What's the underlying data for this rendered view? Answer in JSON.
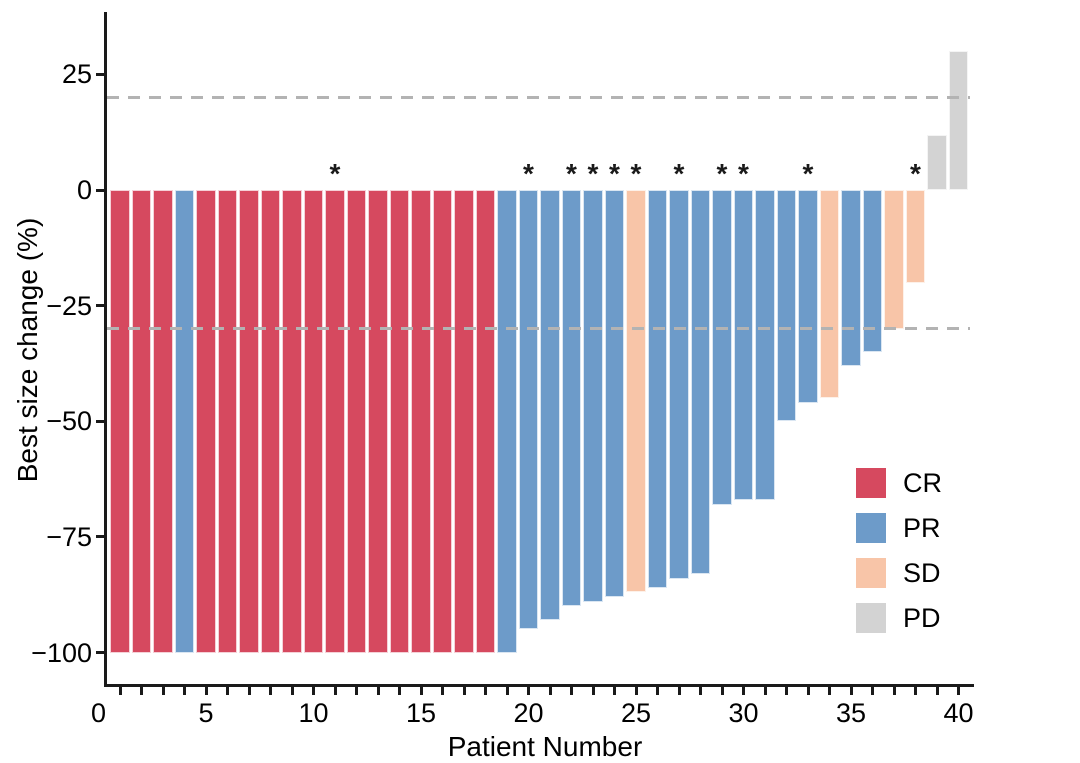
{
  "chart_data": {
    "type": "bar",
    "subtype": "waterfall-tumor-response",
    "title": "",
    "xlabel": "Patient Number",
    "ylabel": "Best size change (%)",
    "marker_symbol": "*",
    "xlim": [
      0,
      40.7
    ],
    "ylim": [
      -107,
      38
    ],
    "grid": false,
    "legend_position": "right-middle",
    "x_tick_labels": [
      {
        "value": 0,
        "label": "0"
      },
      {
        "value": 5,
        "label": "5"
      },
      {
        "value": 10,
        "label": "10"
      },
      {
        "value": 15,
        "label": "15"
      },
      {
        "value": 20,
        "label": "20"
      },
      {
        "value": 25,
        "label": "25"
      },
      {
        "value": 30,
        "label": "30"
      },
      {
        "value": 35,
        "label": "35"
      },
      {
        "value": 40,
        "label": "40"
      }
    ],
    "minor_x_ticks_every": 1,
    "y_tick_labels": [
      {
        "value": 25,
        "label": "25"
      },
      {
        "value": 0,
        "label": "0"
      },
      {
        "value": -25,
        "label": "−25"
      },
      {
        "value": -50,
        "label": "−50"
      },
      {
        "value": -75,
        "label": "−75"
      },
      {
        "value": -100,
        "label": "−100"
      }
    ],
    "reference_lines": [
      {
        "value": 20,
        "style": "dashed"
      },
      {
        "value": -30,
        "style": "dashed"
      }
    ],
    "colors": {
      "CR": "#D6495F",
      "PR": "#6D9BC9",
      "SD": "#F8C5A8",
      "PD": "#D3D3D3",
      "reference": "#B3B3B3",
      "axis": "#1A1A1A"
    },
    "legend": [
      {
        "label": "CR"
      },
      {
        "label": "PR"
      },
      {
        "label": "SD"
      },
      {
        "label": "PD"
      }
    ],
    "patients": [
      {
        "number": 1,
        "change_pct": -100,
        "response": "CR",
        "asterisk": false
      },
      {
        "number": 2,
        "change_pct": -100,
        "response": "CR",
        "asterisk": false
      },
      {
        "number": 3,
        "change_pct": -100,
        "response": "CR",
        "asterisk": false
      },
      {
        "number": 4,
        "change_pct": -100,
        "response": "PR",
        "asterisk": false
      },
      {
        "number": 5,
        "change_pct": -100,
        "response": "CR",
        "asterisk": false
      },
      {
        "number": 6,
        "change_pct": -100,
        "response": "CR",
        "asterisk": false
      },
      {
        "number": 7,
        "change_pct": -100,
        "response": "CR",
        "asterisk": false
      },
      {
        "number": 8,
        "change_pct": -100,
        "response": "CR",
        "asterisk": false
      },
      {
        "number": 9,
        "change_pct": -100,
        "response": "CR",
        "asterisk": false
      },
      {
        "number": 10,
        "change_pct": -100,
        "response": "CR",
        "asterisk": false
      },
      {
        "number": 11,
        "change_pct": -100,
        "response": "CR",
        "asterisk": true
      },
      {
        "number": 12,
        "change_pct": -100,
        "response": "CR",
        "asterisk": false
      },
      {
        "number": 13,
        "change_pct": -100,
        "response": "CR",
        "asterisk": false
      },
      {
        "number": 14,
        "change_pct": -100,
        "response": "CR",
        "asterisk": false
      },
      {
        "number": 15,
        "change_pct": -100,
        "response": "CR",
        "asterisk": false
      },
      {
        "number": 16,
        "change_pct": -100,
        "response": "CR",
        "asterisk": false
      },
      {
        "number": 17,
        "change_pct": -100,
        "response": "CR",
        "asterisk": false
      },
      {
        "number": 18,
        "change_pct": -100,
        "response": "CR",
        "asterisk": false
      },
      {
        "number": 19,
        "change_pct": -100,
        "response": "PR",
        "asterisk": false
      },
      {
        "number": 20,
        "change_pct": -95,
        "response": "PR",
        "asterisk": true
      },
      {
        "number": 21,
        "change_pct": -93,
        "response": "PR",
        "asterisk": false
      },
      {
        "number": 22,
        "change_pct": -90,
        "response": "PR",
        "asterisk": true
      },
      {
        "number": 23,
        "change_pct": -89,
        "response": "PR",
        "asterisk": true
      },
      {
        "number": 24,
        "change_pct": -88,
        "response": "PR",
        "asterisk": true
      },
      {
        "number": 25,
        "change_pct": -87,
        "response": "SD",
        "asterisk": true
      },
      {
        "number": 26,
        "change_pct": -86,
        "response": "PR",
        "asterisk": false
      },
      {
        "number": 27,
        "change_pct": -84,
        "response": "PR",
        "asterisk": true
      },
      {
        "number": 28,
        "change_pct": -83,
        "response": "PR",
        "asterisk": false
      },
      {
        "number": 29,
        "change_pct": -68,
        "response": "PR",
        "asterisk": true
      },
      {
        "number": 30,
        "change_pct": -67,
        "response": "PR",
        "asterisk": true
      },
      {
        "number": 31,
        "change_pct": -67,
        "response": "PR",
        "asterisk": false
      },
      {
        "number": 32,
        "change_pct": -50,
        "response": "PR",
        "asterisk": false
      },
      {
        "number": 33,
        "change_pct": -46,
        "response": "PR",
        "asterisk": true
      },
      {
        "number": 34,
        "change_pct": -45,
        "response": "SD",
        "asterisk": false
      },
      {
        "number": 35,
        "change_pct": -38,
        "response": "PR",
        "asterisk": false
      },
      {
        "number": 36,
        "change_pct": -35,
        "response": "PR",
        "asterisk": false
      },
      {
        "number": 37,
        "change_pct": -30,
        "response": "SD",
        "asterisk": false
      },
      {
        "number": 38,
        "change_pct": -20,
        "response": "SD",
        "asterisk": true
      },
      {
        "number": 39,
        "change_pct": 12,
        "response": "PD",
        "asterisk": false
      },
      {
        "number": 40,
        "change_pct": 30,
        "response": "PD",
        "asterisk": false
      }
    ]
  }
}
